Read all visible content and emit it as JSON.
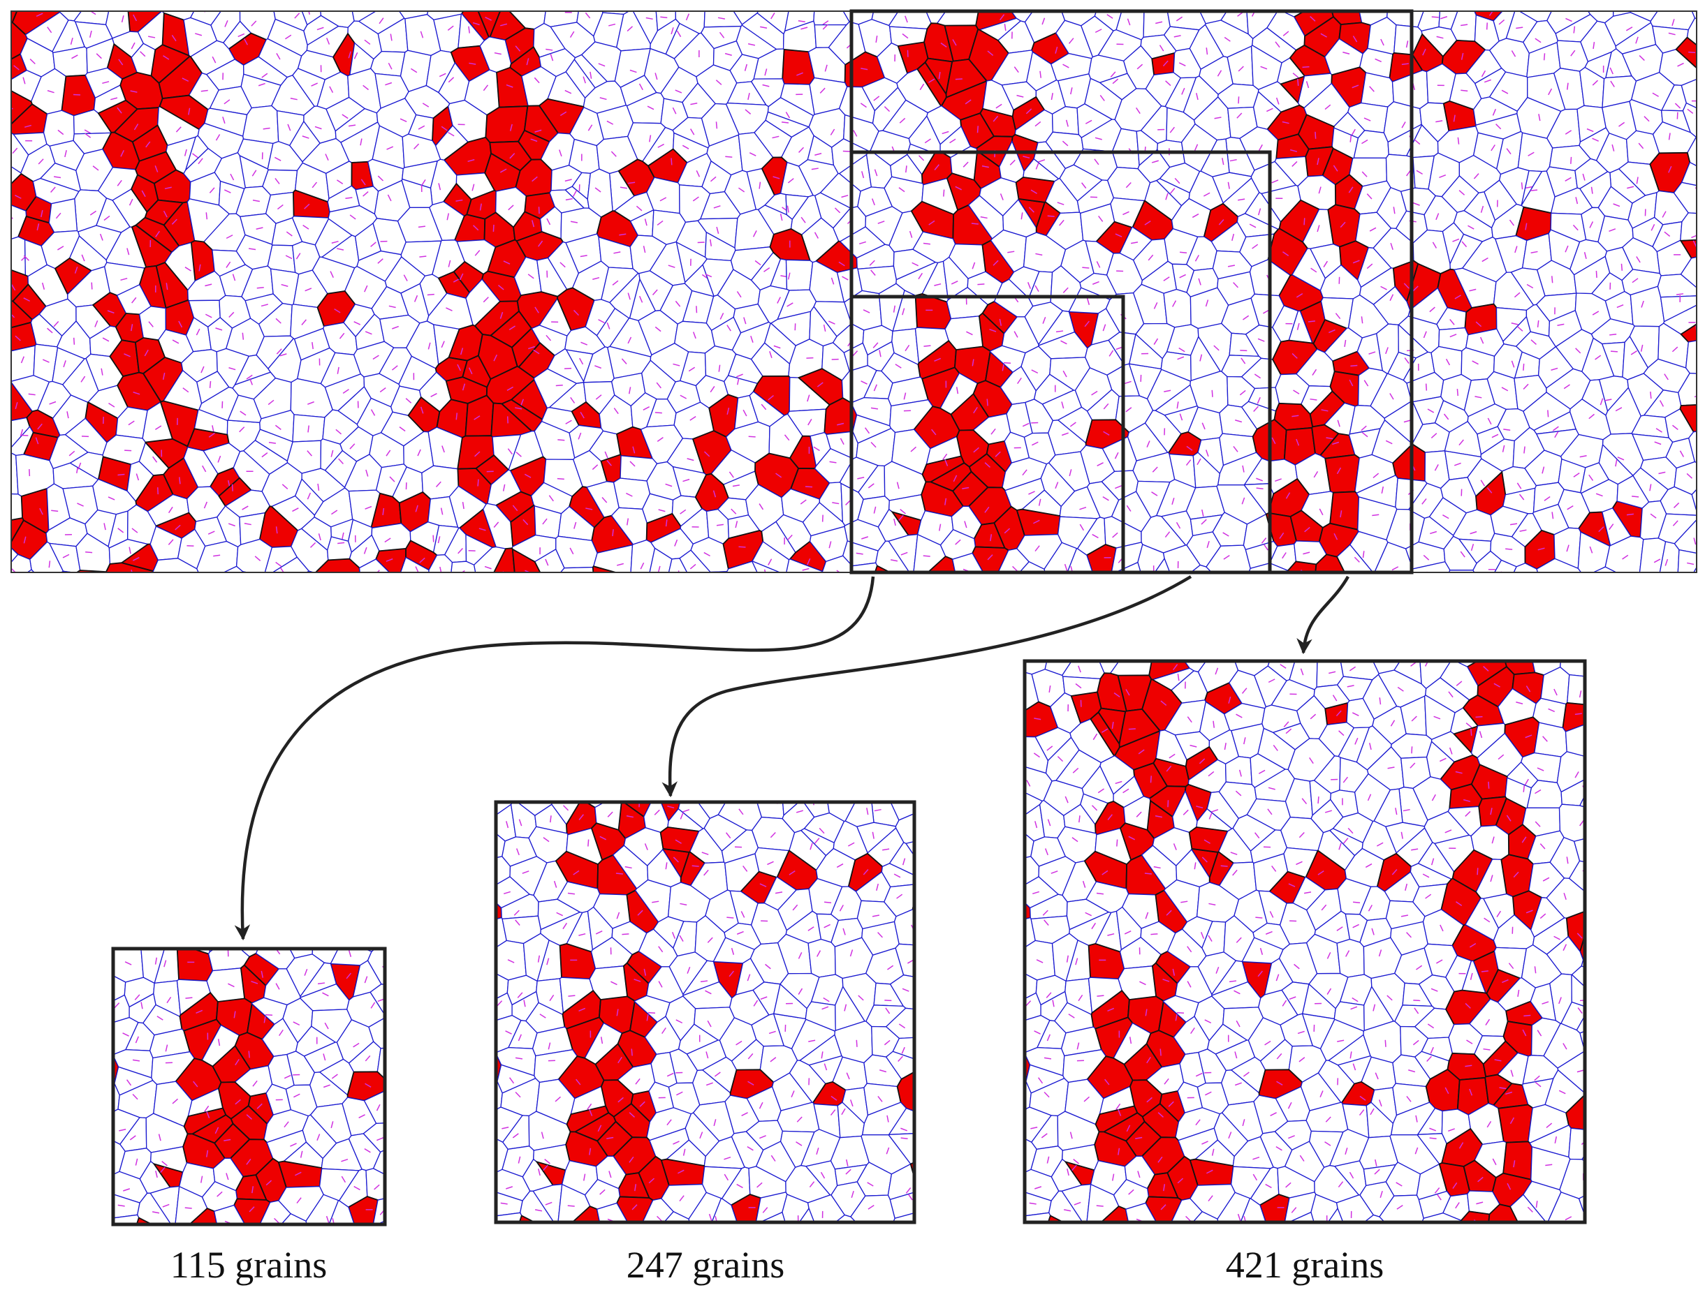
{
  "panels": [
    {
      "label": "115 grains"
    },
    {
      "label": "247 grains"
    },
    {
      "label": "421 grains"
    }
  ]
}
